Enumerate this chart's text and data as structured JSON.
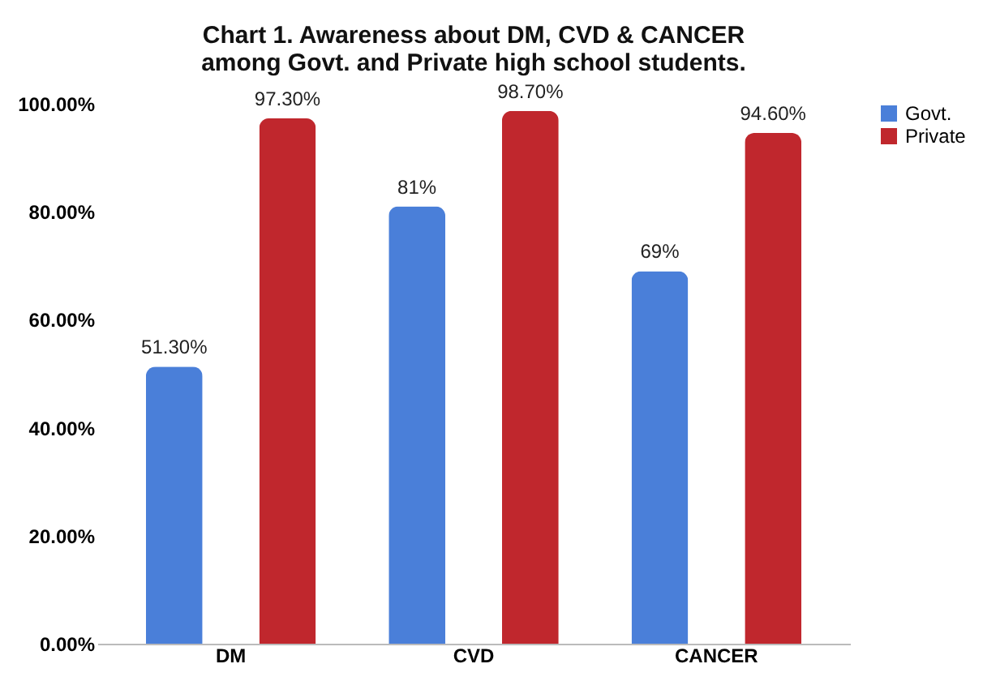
{
  "chart_data": {
    "type": "bar",
    "title": "Chart 1. Awareness about DM, CVD & CANCER among Govt. and Private high school students.",
    "categories": [
      "DM",
      "CVD",
      "CANCER"
    ],
    "series": [
      {
        "name": "Govt.",
        "color": "#4a7fd9",
        "values": [
          51.3,
          81,
          69
        ],
        "value_labels": [
          "51.30%",
          "81%",
          "69%"
        ]
      },
      {
        "name": "Private",
        "color": "#c0272d",
        "values": [
          97.3,
          98.7,
          94.6
        ],
        "value_labels": [
          "97.30%",
          "98.70%",
          "94.60%"
        ]
      }
    ],
    "ylim": [
      0,
      100
    ],
    "yticks": [
      {
        "value": 0,
        "label": "0.00%"
      },
      {
        "value": 20,
        "label": "20.00%"
      },
      {
        "value": 40,
        "label": "40.00%"
      },
      {
        "value": 60,
        "label": "60.00%"
      },
      {
        "value": 80,
        "label": "80.00%"
      },
      {
        "value": 100,
        "label": "100.00%"
      }
    ],
    "grid": false,
    "legend": "right"
  }
}
